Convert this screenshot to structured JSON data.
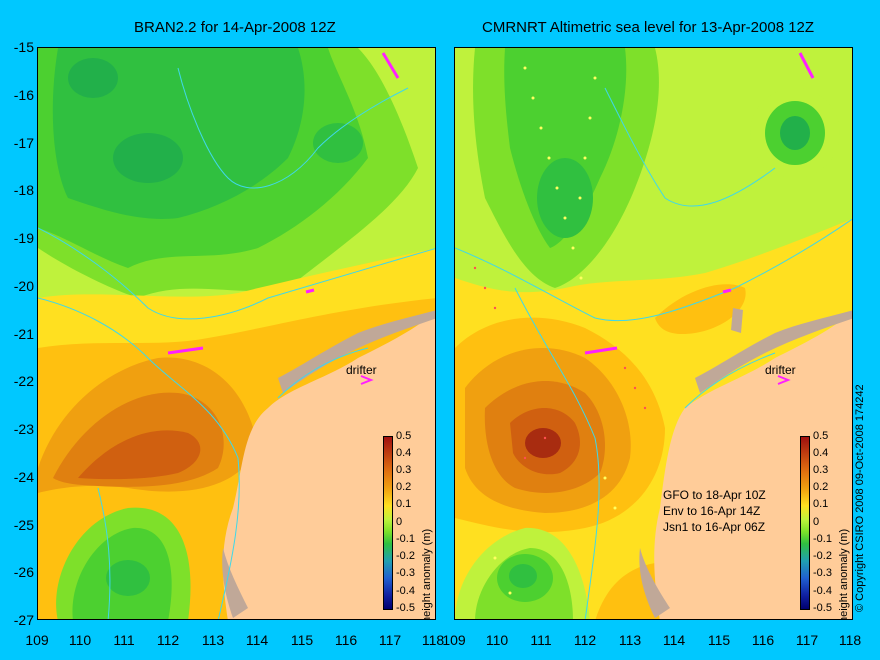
{
  "left_map": {
    "title": "BRAN2.2 for 14-Apr-2008 12Z",
    "drifter_label": "drifter",
    "colorbar_title": "height anomaly (m)"
  },
  "right_map": {
    "title": "CMRNRT Altimetric sea level  for 13-Apr-2008 12Z",
    "drifter_label": "drifter",
    "colorbar_title": "height anomaly (m)",
    "pass_info": [
      "GFO to 18-Apr 10Z",
      "Env to 16-Apr 14Z",
      "Jsn1 to 16-Apr 06Z"
    ]
  },
  "y_ticks": [
    "-15",
    "-16",
    "-17",
    "-18",
    "-19",
    "-20",
    "-21",
    "-22",
    "-23",
    "-24",
    "-25",
    "-26",
    "-27"
  ],
  "left_x_ticks": [
    "109",
    "110",
    "111",
    "112",
    "113",
    "114",
    "115",
    "116",
    "117",
    "118"
  ],
  "right_x_ticks": [
    "109",
    "110",
    "111",
    "112",
    "113",
    "114",
    "115",
    "116",
    "117",
    "118"
  ],
  "colorbar_ticks": [
    "0.5",
    "0.4",
    "0.3",
    "0.2",
    "0.1",
    "0",
    "-0.1",
    "-0.2",
    "-0.3",
    "-0.4",
    "-0.5"
  ],
  "copyright": "© Copyright CSIRO 2008    09-Oct-2008 174242",
  "colors": {
    "background": "#00c8ff",
    "land": "#ffcc99",
    "island": "#c0a898",
    "contour": "#40d8e8",
    "drifter": "#ff20ff"
  },
  "icons": [
    "drifter-arrow-icon"
  ]
}
